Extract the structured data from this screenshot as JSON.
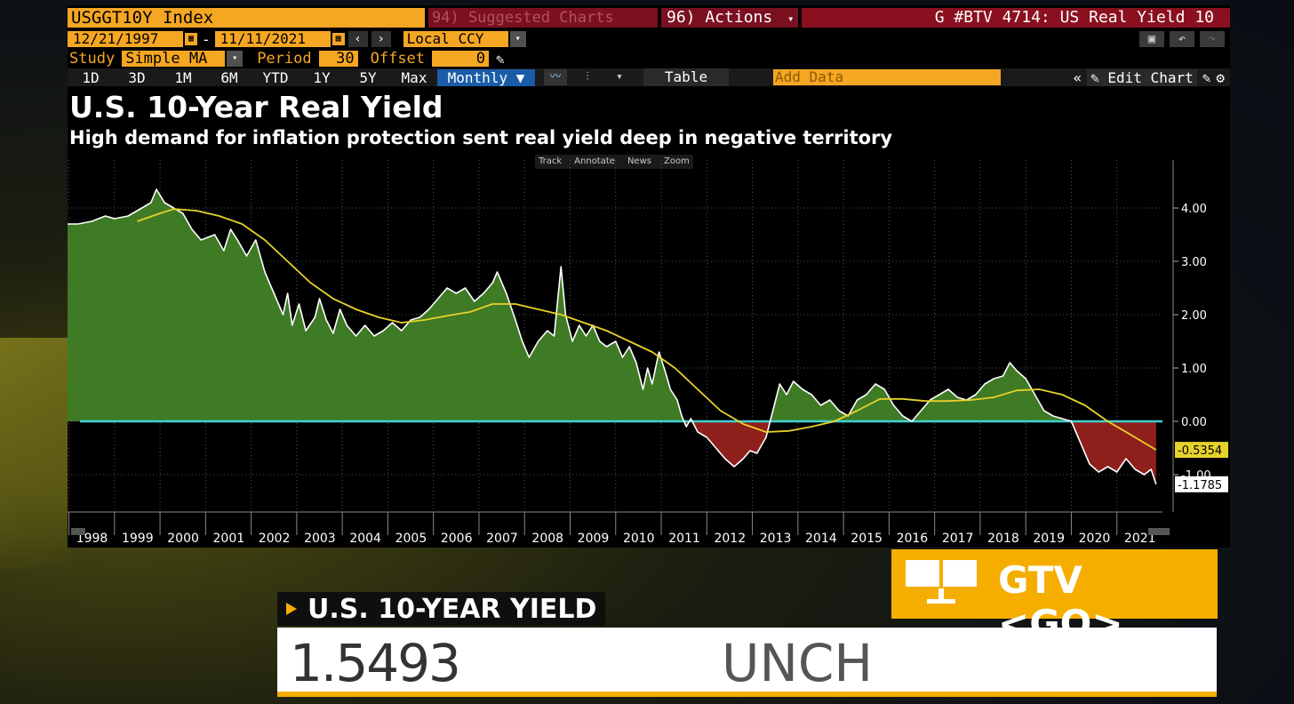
{
  "toolbar": {
    "ticker": "USGGT10Y Index",
    "suggested_charts": "94) Suggested Charts",
    "actions": "96) Actions",
    "actions_arrow": "▾",
    "window_title": "G #BTV 4714: US Real Yield 10",
    "start_date": "12/21/1997",
    "date_separator": "-",
    "end_date": "11/11/2021",
    "currency": "Local CCY",
    "study_label": "Study",
    "study_value": "Simple MA",
    "period_label": "Period",
    "period_value": "30",
    "offset_label": "Offset",
    "offset_value": "0",
    "ranges": [
      "1D",
      "3D",
      "1M",
      "6M",
      "YTD",
      "1Y",
      "5Y",
      "Max"
    ],
    "frequency": "Monthly ▼",
    "table_label": "Table",
    "add_data_placeholder": "Add Data",
    "edit_chart_label": "Edit Chart"
  },
  "chart_tools": [
    "Track",
    "Annotate",
    "News",
    "Zoom"
  ],
  "chart_data": {
    "type": "area",
    "title": "U.S. 10-Year Real Yield",
    "subtitle": "High demand for inflation protection sent real yield deep in negative territory",
    "x_ticks": [
      "1998",
      "1999",
      "2000",
      "2001",
      "2002",
      "2003",
      "2004",
      "2005",
      "2006",
      "2007",
      "2008",
      "2009",
      "2010",
      "2011",
      "2012",
      "2013",
      "2014",
      "2015",
      "2016",
      "2017",
      "2018",
      "2019",
      "2020",
      "2021"
    ],
    "y_ticks": [
      "4.00",
      "3.00",
      "2.00",
      "1.00",
      "0.00",
      "-1.00"
    ],
    "ylim": [
      -1.7,
      4.9
    ],
    "xlim": [
      1997.97,
      2022.0
    ],
    "series": [
      {
        "name": "USGGT10Y Index",
        "color_positive": "#3f7a25",
        "color_negative": "#8f1f1a",
        "line_color": "#ffffff",
        "points": [
          [
            1997.97,
            3.7
          ],
          [
            1998.2,
            3.7
          ],
          [
            1998.5,
            3.75
          ],
          [
            1998.8,
            3.85
          ],
          [
            1999.0,
            3.8
          ],
          [
            1999.3,
            3.85
          ],
          [
            1999.6,
            4.0
          ],
          [
            1999.8,
            4.1
          ],
          [
            1999.92,
            4.35
          ],
          [
            2000.1,
            4.1
          ],
          [
            2000.3,
            4.0
          ],
          [
            2000.5,
            3.9
          ],
          [
            2000.7,
            3.6
          ],
          [
            2000.9,
            3.4
          ],
          [
            2001.2,
            3.5
          ],
          [
            2001.4,
            3.2
          ],
          [
            2001.55,
            3.6
          ],
          [
            2001.7,
            3.4
          ],
          [
            2001.9,
            3.1
          ],
          [
            2002.1,
            3.4
          ],
          [
            2002.3,
            2.8
          ],
          [
            2002.5,
            2.4
          ],
          [
            2002.7,
            2.0
          ],
          [
            2002.8,
            2.4
          ],
          [
            2002.9,
            1.8
          ],
          [
            2003.05,
            2.2
          ],
          [
            2003.2,
            1.7
          ],
          [
            2003.4,
            1.95
          ],
          [
            2003.5,
            2.3
          ],
          [
            2003.65,
            1.9
          ],
          [
            2003.8,
            1.65
          ],
          [
            2003.95,
            2.1
          ],
          [
            2004.1,
            1.8
          ],
          [
            2004.3,
            1.6
          ],
          [
            2004.5,
            1.8
          ],
          [
            2004.7,
            1.6
          ],
          [
            2004.9,
            1.7
          ],
          [
            2005.1,
            1.85
          ],
          [
            2005.3,
            1.7
          ],
          [
            2005.5,
            1.9
          ],
          [
            2005.7,
            1.95
          ],
          [
            2005.9,
            2.1
          ],
          [
            2006.1,
            2.3
          ],
          [
            2006.3,
            2.5
          ],
          [
            2006.5,
            2.4
          ],
          [
            2006.7,
            2.5
          ],
          [
            2006.9,
            2.25
          ],
          [
            2007.1,
            2.4
          ],
          [
            2007.3,
            2.6
          ],
          [
            2007.4,
            2.8
          ],
          [
            2007.6,
            2.4
          ],
          [
            2007.8,
            1.9
          ],
          [
            2007.95,
            1.5
          ],
          [
            2008.1,
            1.2
          ],
          [
            2008.3,
            1.5
          ],
          [
            2008.5,
            1.7
          ],
          [
            2008.65,
            1.6
          ],
          [
            2008.8,
            2.9
          ],
          [
            2008.9,
            2.0
          ],
          [
            2009.05,
            1.5
          ],
          [
            2009.2,
            1.8
          ],
          [
            2009.35,
            1.6
          ],
          [
            2009.5,
            1.8
          ],
          [
            2009.65,
            1.5
          ],
          [
            2009.8,
            1.4
          ],
          [
            2010.0,
            1.5
          ],
          [
            2010.15,
            1.2
          ],
          [
            2010.3,
            1.4
          ],
          [
            2010.45,
            1.1
          ],
          [
            2010.6,
            0.6
          ],
          [
            2010.7,
            1.0
          ],
          [
            2010.8,
            0.7
          ],
          [
            2010.95,
            1.3
          ],
          [
            2011.1,
            0.9
          ],
          [
            2011.2,
            0.6
          ],
          [
            2011.35,
            0.4
          ],
          [
            2011.45,
            0.1
          ],
          [
            2011.55,
            -0.1
          ],
          [
            2011.65,
            0.05
          ],
          [
            2011.8,
            -0.2
          ],
          [
            2012.0,
            -0.3
          ],
          [
            2012.2,
            -0.5
          ],
          [
            2012.4,
            -0.7
          ],
          [
            2012.6,
            -0.85
          ],
          [
            2012.8,
            -0.7
          ],
          [
            2012.95,
            -0.55
          ],
          [
            2013.1,
            -0.6
          ],
          [
            2013.3,
            -0.3
          ],
          [
            2013.45,
            0.2
          ],
          [
            2013.6,
            0.7
          ],
          [
            2013.75,
            0.5
          ],
          [
            2013.9,
            0.75
          ],
          [
            2014.1,
            0.6
          ],
          [
            2014.3,
            0.5
          ],
          [
            2014.5,
            0.3
          ],
          [
            2014.7,
            0.4
          ],
          [
            2014.9,
            0.2
          ],
          [
            2015.1,
            0.1
          ],
          [
            2015.3,
            0.4
          ],
          [
            2015.5,
            0.5
          ],
          [
            2015.7,
            0.7
          ],
          [
            2015.9,
            0.6
          ],
          [
            2016.1,
            0.3
          ],
          [
            2016.3,
            0.1
          ],
          [
            2016.5,
            0.0
          ],
          [
            2016.7,
            0.2
          ],
          [
            2016.9,
            0.4
          ],
          [
            2017.1,
            0.5
          ],
          [
            2017.3,
            0.6
          ],
          [
            2017.5,
            0.45
          ],
          [
            2017.7,
            0.4
          ],
          [
            2017.9,
            0.5
          ],
          [
            2018.1,
            0.7
          ],
          [
            2018.3,
            0.8
          ],
          [
            2018.5,
            0.85
          ],
          [
            2018.65,
            1.1
          ],
          [
            2018.8,
            0.95
          ],
          [
            2019.0,
            0.8
          ],
          [
            2019.2,
            0.5
          ],
          [
            2019.4,
            0.2
          ],
          [
            2019.6,
            0.1
          ],
          [
            2019.8,
            0.05
          ],
          [
            2020.0,
            0.0
          ],
          [
            2020.2,
            -0.4
          ],
          [
            2020.4,
            -0.8
          ],
          [
            2020.6,
            -0.95
          ],
          [
            2020.8,
            -0.85
          ],
          [
            2021.0,
            -0.95
          ],
          [
            2021.2,
            -0.7
          ],
          [
            2021.4,
            -0.9
          ],
          [
            2021.6,
            -1.0
          ],
          [
            2021.75,
            -0.9
          ],
          [
            2021.86,
            -1.18
          ]
        ]
      },
      {
        "name": "Simple MA 30",
        "color": "#e6d22a",
        "points": [
          [
            1999.5,
            3.75
          ],
          [
            2000.0,
            3.9
          ],
          [
            2000.3,
            3.98
          ],
          [
            2000.8,
            3.95
          ],
          [
            2001.3,
            3.85
          ],
          [
            2001.8,
            3.7
          ],
          [
            2002.3,
            3.4
          ],
          [
            2002.8,
            3.0
          ],
          [
            2003.3,
            2.6
          ],
          [
            2003.8,
            2.3
          ],
          [
            2004.3,
            2.1
          ],
          [
            2004.8,
            1.95
          ],
          [
            2005.3,
            1.85
          ],
          [
            2005.8,
            1.9
          ],
          [
            2006.3,
            1.98
          ],
          [
            2006.8,
            2.05
          ],
          [
            2007.3,
            2.2
          ],
          [
            2007.8,
            2.2
          ],
          [
            2008.3,
            2.1
          ],
          [
            2008.8,
            2.0
          ],
          [
            2009.3,
            1.85
          ],
          [
            2009.8,
            1.7
          ],
          [
            2010.3,
            1.5
          ],
          [
            2010.8,
            1.3
          ],
          [
            2011.3,
            1.0
          ],
          [
            2011.8,
            0.6
          ],
          [
            2012.3,
            0.2
          ],
          [
            2012.8,
            -0.05
          ],
          [
            2013.3,
            -0.2
          ],
          [
            2013.8,
            -0.18
          ],
          [
            2014.3,
            -0.1
          ],
          [
            2014.8,
            0.0
          ],
          [
            2015.3,
            0.2
          ],
          [
            2015.8,
            0.42
          ],
          [
            2016.3,
            0.42
          ],
          [
            2016.8,
            0.38
          ],
          [
            2017.3,
            0.38
          ],
          [
            2017.8,
            0.4
          ],
          [
            2018.3,
            0.45
          ],
          [
            2018.8,
            0.58
          ],
          [
            2019.3,
            0.6
          ],
          [
            2019.8,
            0.5
          ],
          [
            2020.3,
            0.3
          ],
          [
            2020.8,
            0.0
          ],
          [
            2021.3,
            -0.25
          ],
          [
            2021.86,
            -0.535
          ]
        ]
      }
    ],
    "last_value_labels": [
      "-0.5354",
      "-1.1785"
    ],
    "zero_line_color": "#40d0d0"
  },
  "gtv_button": {
    "label": "GTV <GO>"
  },
  "lower_third": {
    "label": "U.S. 10-YEAR YIELD",
    "value": "1.5493",
    "change": "UNCH"
  }
}
